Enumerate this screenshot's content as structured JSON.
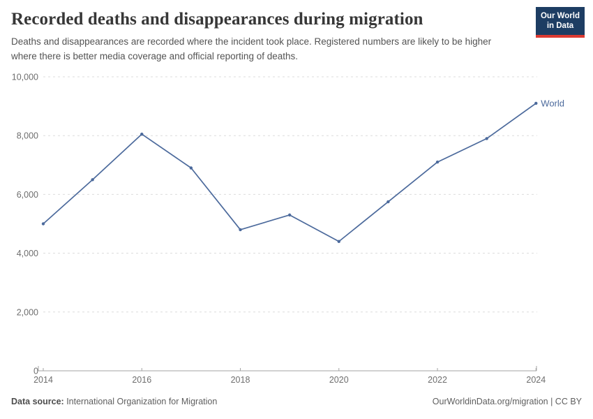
{
  "header": {
    "title": "Recorded deaths and disappearances during migration",
    "subtitle": "Deaths and disappearances are recorded where the incident took place. Registered numbers are likely to be higher where there is better media coverage and official reporting of deaths.",
    "logo": {
      "line1": "Our World",
      "line2": "in Data"
    }
  },
  "chart_data": {
    "type": "line",
    "title": "Recorded deaths and disappearances during migration",
    "xlabel": "",
    "ylabel": "",
    "xlim": [
      2014,
      2024
    ],
    "ylim": [
      0,
      10000
    ],
    "grid": true,
    "legend_position": "end-of-line",
    "x_ticks": [
      2014,
      2016,
      2018,
      2020,
      2022,
      2024
    ],
    "y_ticks": [
      0,
      2000,
      4000,
      6000,
      8000,
      10000
    ],
    "series": [
      {
        "name": "World",
        "color": "#4c6a9c",
        "x": [
          2014,
          2015,
          2016,
          2017,
          2018,
          2019,
          2020,
          2021,
          2022,
          2023,
          2024
        ],
        "values": [
          5000,
          6500,
          8050,
          6900,
          4800,
          5300,
          4400,
          5750,
          7100,
          7900,
          9100
        ]
      }
    ]
  },
  "footer": {
    "source_label": "Data source:",
    "source_value": " International Organization for Migration",
    "attribution": "OurWorldinData.org/migration | CC BY"
  }
}
